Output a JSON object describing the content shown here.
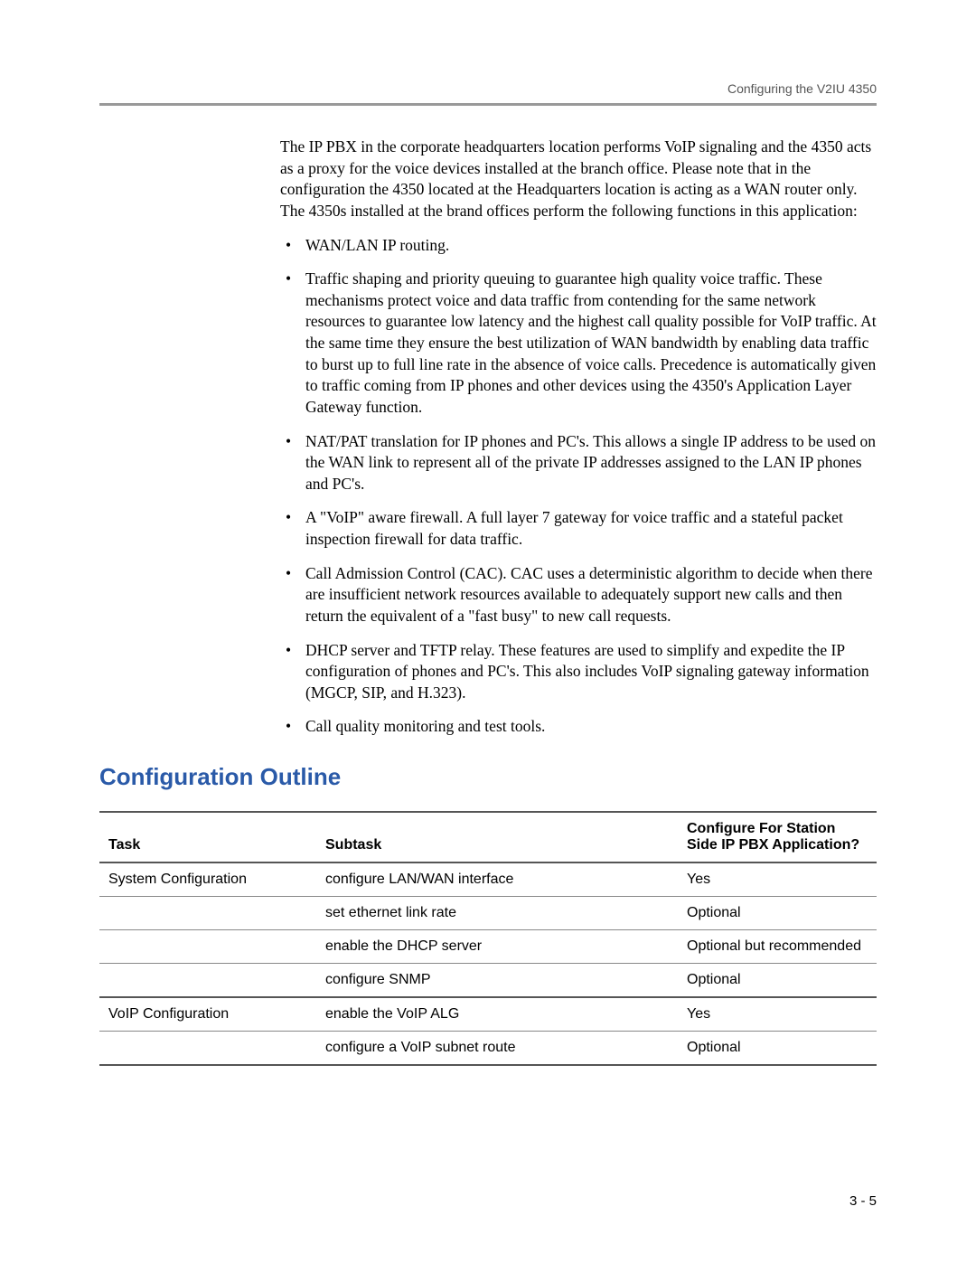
{
  "header": {
    "running_title": "Configuring the V2IU 4350"
  },
  "intro": {
    "paragraph": "The IP PBX in the corporate headquarters location performs VoIP signaling and the 4350 acts as a proxy for the voice devices installed at the branch office. Please note that in the configuration the 4350 located at the Headquarters location is acting as a WAN router only. The 4350s installed at the brand offices perform the following functions in this application:"
  },
  "bullets": [
    "WAN/LAN IP routing.",
    "Traffic shaping and priority queuing to guarantee high quality voice traffic. These mechanisms protect voice and data traffic from contending for the same network resources to guarantee low latency and the highest call quality possible for VoIP traffic. At the same time they ensure the best utilization of WAN bandwidth by enabling data traffic to burst up to full line rate in the absence of voice calls. Precedence is automatically given to traffic coming from IP phones and other devices using the 4350's Application Layer Gateway function.",
    "NAT/PAT translation for IP phones and PC's. This allows a single IP address to be used on the WAN link to represent all of the private IP addresses assigned to the LAN IP phones and PC's.",
    "A \"VoIP\" aware firewall. A full layer 7 gateway for voice traffic and a stateful packet inspection firewall for data traffic.",
    "Call Admission Control (CAC). CAC uses a deterministic algorithm to decide when there are insufficient network resources available to adequately support new calls and then return the equivalent of a \"fast busy\" to new call requests.",
    "DHCP server and TFTP relay. These features are used to simplify and expedite the IP configuration of phones and PC's. This also includes VoIP signaling gateway information (MGCP, SIP, and H.323).",
    "Call quality monitoring and test tools."
  ],
  "section_heading": "Configuration Outline",
  "table": {
    "columns": {
      "task": "Task",
      "subtask": "Subtask",
      "app": "Configure For Station Side IP PBX Application?"
    },
    "rows": [
      {
        "task": "System Configuration",
        "subtask": "configure LAN/WAN interface",
        "app": "Yes"
      },
      {
        "task": "",
        "subtask": "set ethernet link rate",
        "app": "Optional"
      },
      {
        "task": "",
        "subtask": "enable the DHCP server",
        "app": "Optional but recommended"
      },
      {
        "task": "",
        "subtask": "configure SNMP",
        "app": "Optional"
      },
      {
        "task": "VoIP Configuration",
        "subtask": "enable the VoIP ALG",
        "app": "Yes"
      },
      {
        "task": "",
        "subtask": "configure a VoIP subnet route",
        "app": "Optional"
      }
    ],
    "group_last_indices": [
      3,
      5
    ]
  },
  "page_number": "3 - 5"
}
